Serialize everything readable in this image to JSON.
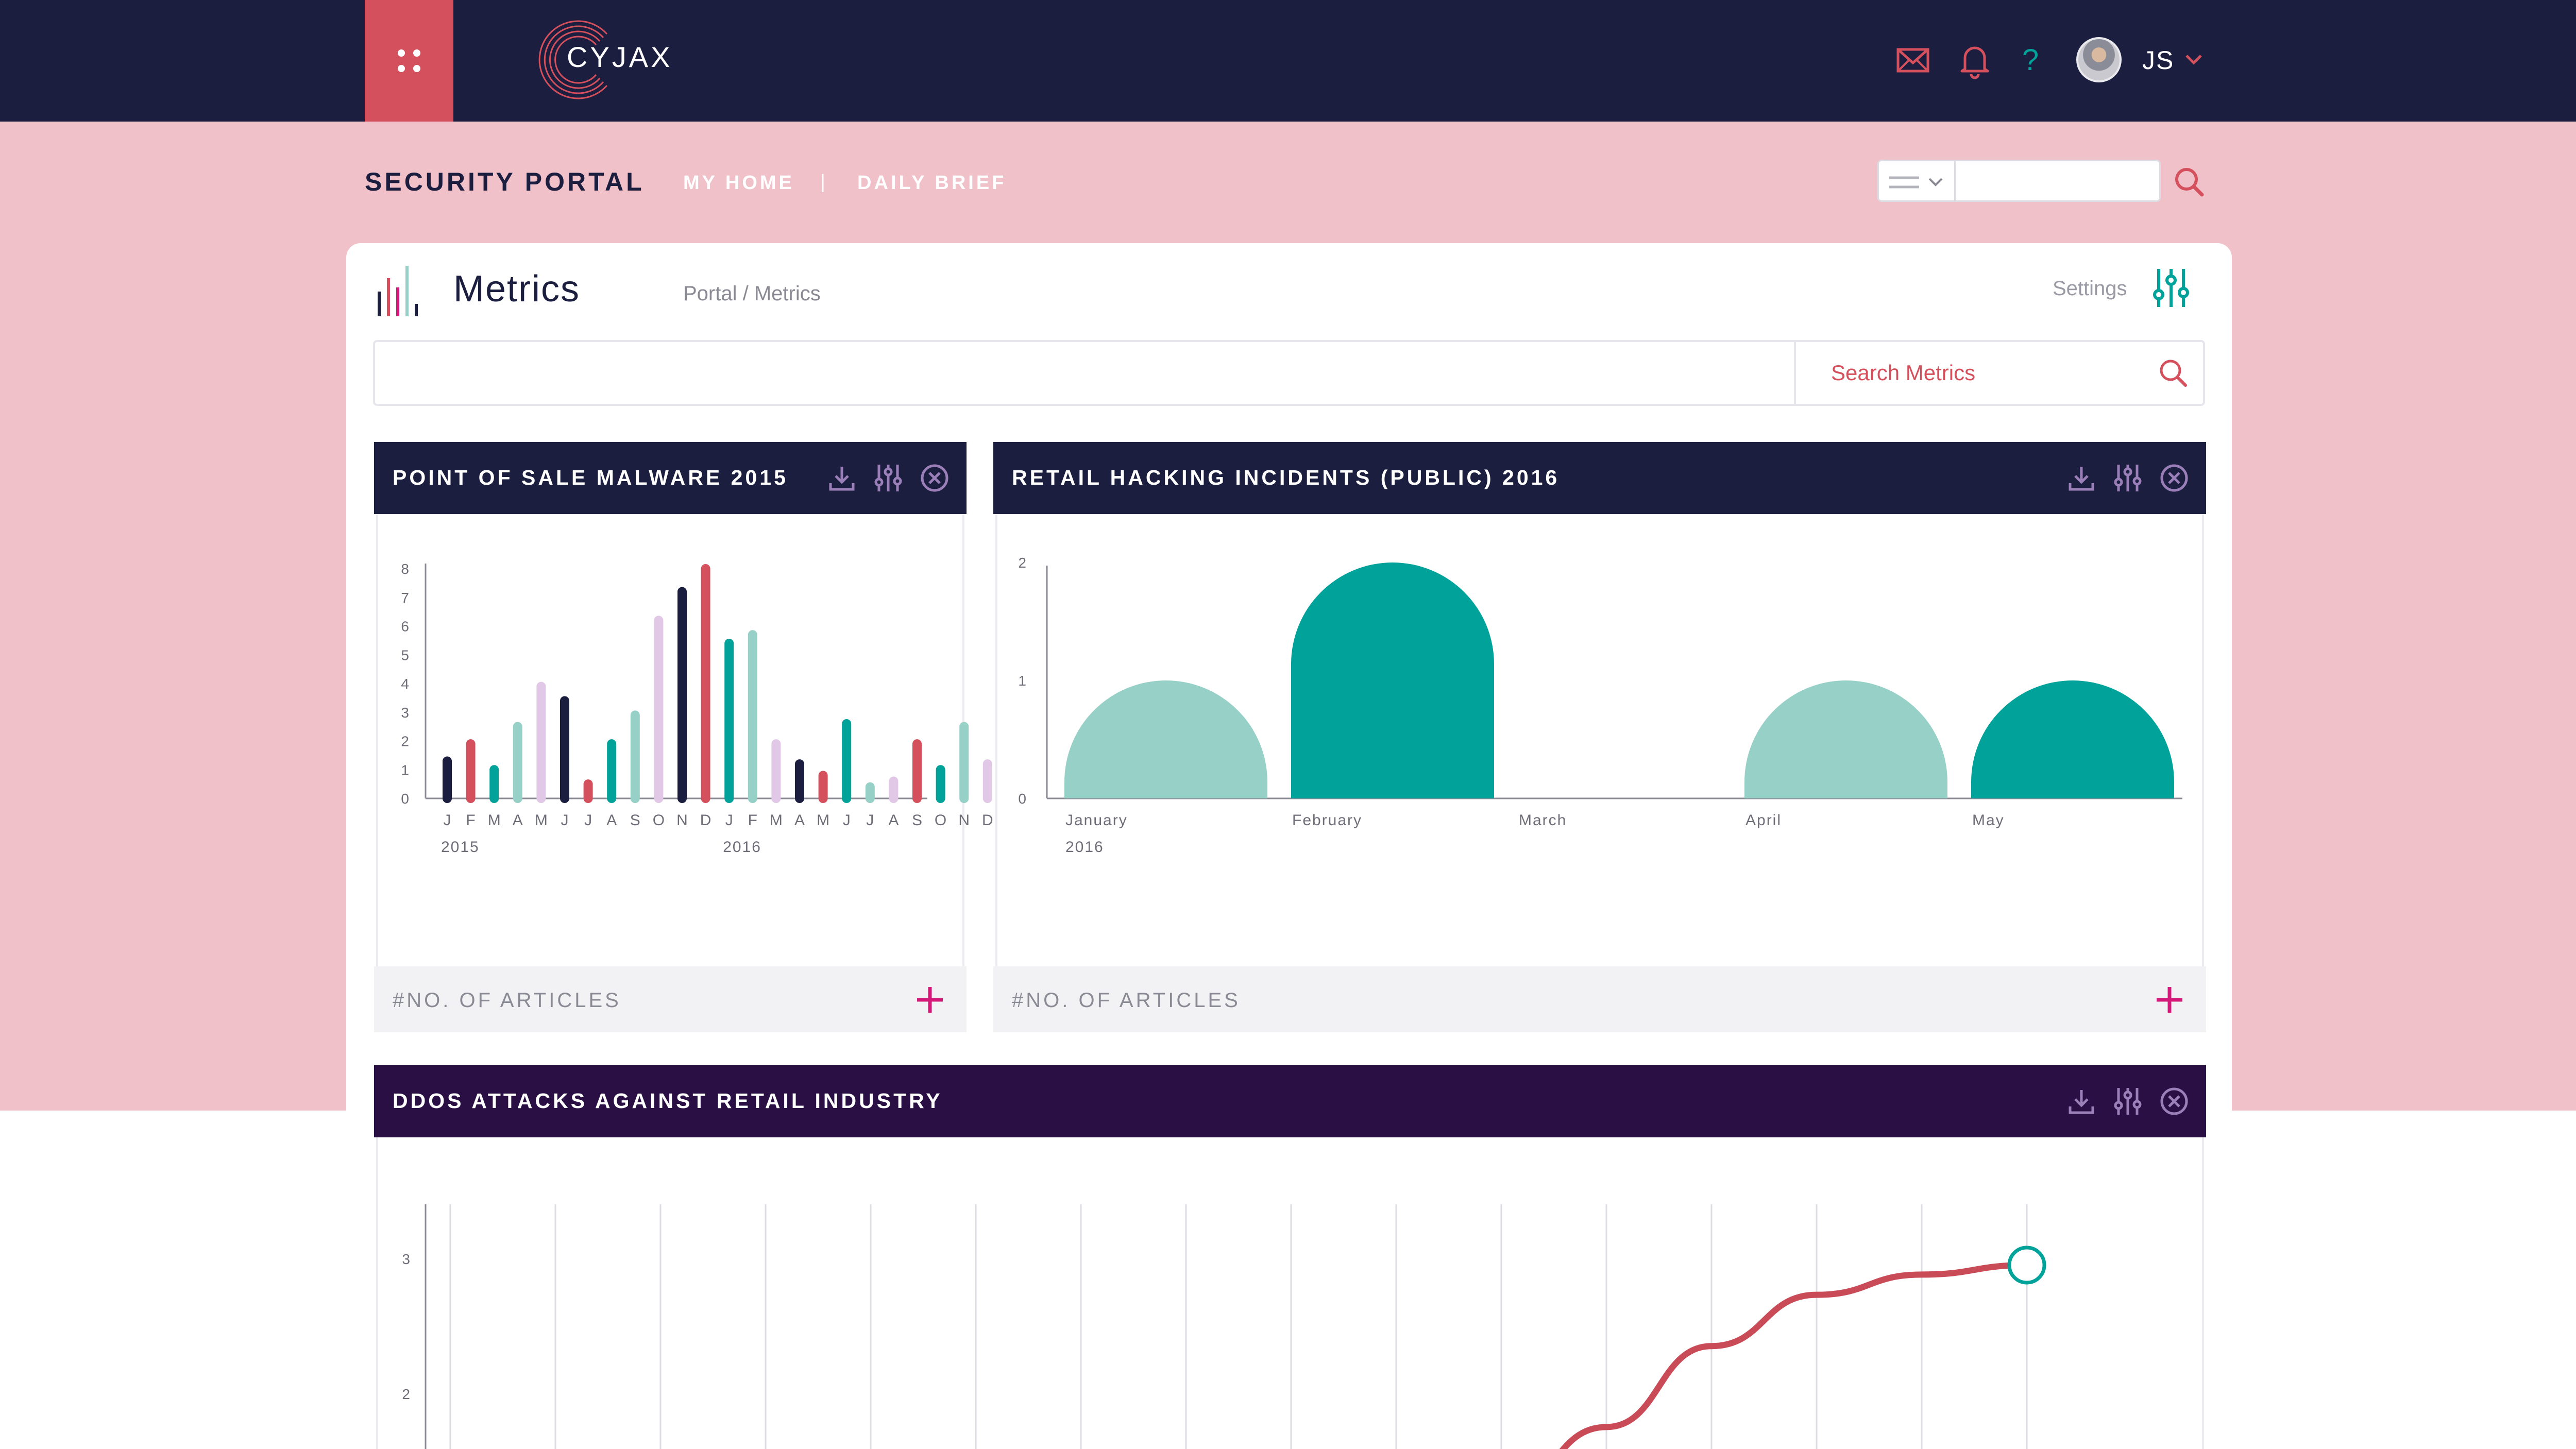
{
  "app": {
    "logo_text": "CYJAX",
    "user_initials": "JS",
    "portal_title": "SECURITY PORTAL",
    "nav": [
      {
        "label": "MY HOME"
      },
      {
        "label": "DAILY BRIEF"
      }
    ],
    "nav_separator": "|",
    "header_search_value": ""
  },
  "colors": {
    "navy": "#1c1e3f",
    "accent_red": "#d3505c",
    "pink_band": "#f0c1c9",
    "teal": "#00a29a",
    "light_teal": "#96d0c6",
    "lavender": "#e1c8e6",
    "purple_header": "#2a0f45",
    "magenta": "#d4197a"
  },
  "icons": {
    "menu": "grid-dots-icon",
    "mail": "envelope-icon",
    "notifications": "bell-icon",
    "help": "question-mark-icon",
    "search": "search-icon",
    "settings": "sliders-icon",
    "download": "download-icon",
    "close": "close-circle-icon",
    "add": "plus-icon"
  },
  "page": {
    "title": "Metrics",
    "breadcrumb": "Portal / Metrics",
    "settings_label": "Settings",
    "search_placeholder": "Search Metrics"
  },
  "panels": [
    {
      "title": "POINT OF SALE MALWARE 2015",
      "footer": "#NO. OF ARTICLES"
    },
    {
      "title": "RETAIL HACKING INCIDENTS (PUBLIC) 2016",
      "footer": "#NO. OF ARTICLES"
    },
    {
      "title": "DDOS ATTACKS AGAINST RETAIL INDUSTRY"
    }
  ],
  "chart_data": [
    {
      "type": "bar",
      "title": "POINT OF SALE MALWARE 2015",
      "categories": [
        "J",
        "F",
        "M",
        "A",
        "M",
        "J",
        "J",
        "A",
        "S",
        "O",
        "N",
        "D",
        "J",
        "F",
        "M",
        "A",
        "M",
        "J",
        "J",
        "A",
        "S",
        "O",
        "N",
        "D"
      ],
      "category_groups": [
        {
          "label": "2015",
          "start_index": 0
        },
        {
          "label": "2016",
          "start_index": 12
        }
      ],
      "values": [
        1.3,
        1.9,
        1.0,
        2.5,
        3.9,
        3.4,
        0.5,
        1.9,
        2.9,
        6.2,
        7.2,
        8.0,
        5.4,
        5.7,
        1.9,
        1.2,
        0.8,
        2.6,
        0.4,
        0.6,
        1.9,
        1.0,
        2.5,
        1.2
      ],
      "bar_colors": [
        "#1c1e3f",
        "#d3505c",
        "#00a29a",
        "#96d0c6",
        "#e1c8e6",
        "#1c1e3f",
        "#d3505c",
        "#00a29a",
        "#96d0c6",
        "#e1c8e6",
        "#1c1e3f",
        "#d3505c",
        "#00a29a",
        "#96d0c6",
        "#e1c8e6",
        "#1c1e3f",
        "#d3505c",
        "#00a29a",
        "#96d0c6",
        "#e1c8e6",
        "#d3505c",
        "#00a29a",
        "#96d0c6",
        "#e1c8e6"
      ],
      "y_ticks": [
        0,
        1,
        2,
        3,
        4,
        5,
        6,
        7,
        8
      ],
      "ylim": [
        0,
        8
      ],
      "xlabel": "",
      "ylabel": "",
      "grid": false
    },
    {
      "type": "bar",
      "title": "RETAIL HACKING INCIDENTS (PUBLIC) 2016",
      "categories": [
        "January",
        "February",
        "March",
        "April",
        "May"
      ],
      "category_groups": [
        {
          "label": "2016",
          "start_index": 0
        }
      ],
      "values": [
        1,
        2,
        0,
        1,
        1
      ],
      "bar_colors": [
        "#96d0c6",
        "#00a29a",
        "#96d0c6",
        "#96d0c6",
        "#00a29a"
      ],
      "y_ticks": [
        0,
        1,
        2
      ],
      "ylim": [
        0,
        2
      ],
      "bar_style": "rounded-top",
      "xlabel": "",
      "ylabel": "",
      "grid": false
    },
    {
      "type": "line",
      "title": "DDOS ATTACKS AGAINST RETAIL INDUSTRY",
      "x": [
        1,
        2,
        3,
        4,
        5,
        6,
        7,
        8,
        9,
        10,
        11,
        12,
        13,
        14,
        15,
        16
      ],
      "series": [
        {
          "values": [
            null,
            null,
            null,
            null,
            null,
            null,
            null,
            null,
            null,
            null,
            1.3,
            1.8,
            2.4,
            2.78,
            2.93,
            3.0
          ]
        }
      ],
      "line_color": "#c94b58",
      "marker_color": "#00a29a",
      "y_ticks_visible": [
        2,
        3
      ],
      "ylim": [
        1,
        3.2
      ],
      "xlabel": "",
      "ylabel": "",
      "grid": "vertical"
    }
  ]
}
